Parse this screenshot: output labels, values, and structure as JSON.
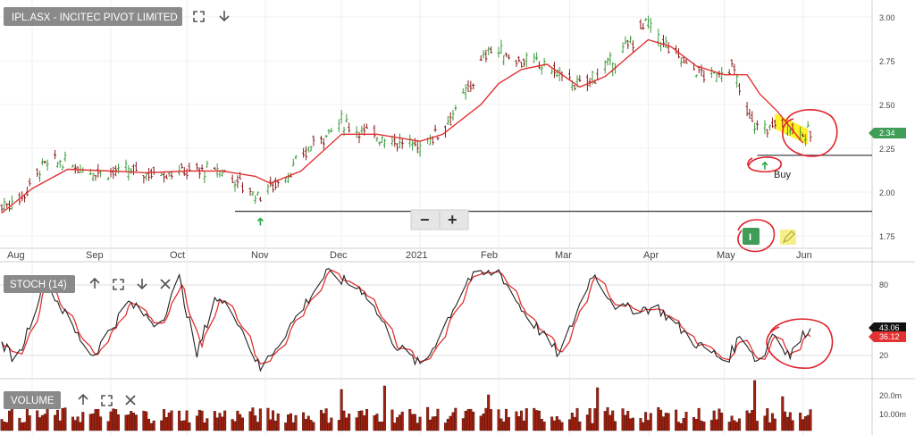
{
  "colors": {
    "up": "#3a9b3a",
    "down": "#8b1a1a",
    "ma": "#e23232",
    "stoch_k": "#222222",
    "stoch_d": "#e23232",
    "volume": "#a3210f",
    "annotation": "#e0202a",
    "highlight": "#ffee00",
    "label_bg": "#8a8a8a",
    "buy_arrow": "#2aa84a"
  },
  "icons": {
    "maximize": "maximize-icon",
    "down": "arrow-down-icon",
    "up": "arrow-up-icon",
    "close": "close-icon",
    "indicator": "indicator-i-icon",
    "pencil": "pencil-icon"
  },
  "price_panel": {
    "label": "IPL.ASX - INCITEC PIVOT LIMITED",
    "buy_text": "Buy",
    "zoom_out": "−",
    "zoom_in": "+",
    "indicator_button": "I",
    "last_price_tag": "2.34",
    "y_ticks": [
      "3.00",
      "2.75",
      "2.50",
      "2.25",
      "2.00",
      "1.75"
    ]
  },
  "x_axis": {
    "labels": [
      "Aug",
      "Sep",
      "Oct",
      "Nov",
      "Dec",
      "2021",
      "Feb",
      "Mar",
      "Apr",
      "May",
      "Jun"
    ]
  },
  "stoch_panel": {
    "label": "STOCH (14)",
    "y_ticks": [
      "80",
      "20"
    ],
    "k_tag": "43.06",
    "d_tag": "36.12"
  },
  "volume_panel": {
    "label": "VOLUME",
    "y_ticks": [
      "20.0m",
      "10.00m"
    ]
  },
  "chart_data": {
    "type": "line",
    "title": "IPL.ASX - INCITEC PIVOT LIMITED",
    "x_range": [
      "2020-07-20",
      "2021-06-04"
    ],
    "price_range": [
      1.7,
      3.07
    ],
    "moving_average": [
      [
        "2020-07-20",
        1.88
      ],
      [
        "2020-08-01",
        2.02
      ],
      [
        "2020-08-15",
        2.13
      ],
      [
        "2020-09-01",
        2.12
      ],
      [
        "2020-09-15",
        2.11
      ],
      [
        "2020-10-01",
        2.12
      ],
      [
        "2020-10-15",
        2.12
      ],
      [
        "2020-10-28",
        2.09
      ],
      [
        "2020-11-03",
        2.05
      ],
      [
        "2020-11-15",
        2.12
      ],
      [
        "2020-12-01",
        2.33
      ],
      [
        "2020-12-15",
        2.33
      ],
      [
        "2021-01-01",
        2.29
      ],
      [
        "2021-01-10",
        2.33
      ],
      [
        "2021-01-25",
        2.5
      ],
      [
        "2021-02-01",
        2.62
      ],
      [
        "2021-02-10",
        2.7
      ],
      [
        "2021-02-20",
        2.73
      ],
      [
        "2021-03-05",
        2.6
      ],
      [
        "2021-03-15",
        2.66
      ],
      [
        "2021-04-01",
        2.87
      ],
      [
        "2021-04-10",
        2.83
      ],
      [
        "2021-04-20",
        2.72
      ],
      [
        "2021-05-01",
        2.67
      ],
      [
        "2021-05-10",
        2.67
      ],
      [
        "2021-05-15",
        2.56
      ],
      [
        "2021-05-22",
        2.46
      ],
      [
        "2021-06-01",
        2.28
      ]
    ],
    "price_anchors": [
      [
        "2020-07-20",
        1.92
      ],
      [
        "2020-07-28",
        1.97
      ],
      [
        "2020-08-05",
        2.15
      ],
      [
        "2020-08-12",
        2.17
      ],
      [
        "2020-08-25",
        2.12
      ],
      [
        "2020-09-15",
        2.11
      ],
      [
        "2020-10-01",
        2.12
      ],
      [
        "2020-10-15",
        2.12
      ],
      [
        "2020-10-29",
        1.98
      ],
      [
        "2020-11-10",
        2.1
      ],
      [
        "2020-11-20",
        2.28
      ],
      [
        "2020-12-01",
        2.4
      ],
      [
        "2020-12-10",
        2.34
      ],
      [
        "2020-12-31",
        2.26
      ],
      [
        "2021-01-10",
        2.36
      ],
      [
        "2021-01-20",
        2.58
      ],
      [
        "2021-01-28",
        2.82
      ],
      [
        "2021-02-10",
        2.75
      ],
      [
        "2021-02-20",
        2.72
      ],
      [
        "2021-03-05",
        2.6
      ],
      [
        "2021-03-20",
        2.76
      ],
      [
        "2021-03-31",
        2.97
      ],
      [
        "2021-04-10",
        2.8
      ],
      [
        "2021-04-25",
        2.65
      ],
      [
        "2021-05-04",
        2.72
      ],
      [
        "2021-05-10",
        2.45
      ],
      [
        "2021-05-15",
        2.35
      ],
      [
        "2021-05-24",
        2.4
      ],
      [
        "2021-06-02",
        2.33
      ]
    ],
    "horizontal_lines": [
      {
        "value": 1.89,
        "from": "2020-10-20",
        "to": "2021-06-30"
      },
      {
        "value": 2.21,
        "from": "2021-05-14",
        "to": "2021-06-30"
      }
    ],
    "buy_signals": [
      {
        "date": "2020-10-30",
        "price": 1.89
      },
      {
        "date": "2021-05-17",
        "price": 2.21
      }
    ],
    "stochastic": {
      "ylim": [
        0,
        100
      ],
      "k_anchors": [
        [
          "2020-07-20",
          30
        ],
        [
          "2020-07-26",
          15
        ],
        [
          "2020-08-06",
          85
        ],
        [
          "2020-08-18",
          40
        ],
        [
          "2020-08-25",
          20
        ],
        [
          "2020-09-08",
          65
        ],
        [
          "2020-09-20",
          45
        ],
        [
          "2020-09-28",
          85
        ],
        [
          "2020-10-05",
          20
        ],
        [
          "2020-10-12",
          70
        ],
        [
          "2020-10-20",
          55
        ],
        [
          "2020-10-30",
          8
        ],
        [
          "2020-11-25",
          90
        ],
        [
          "2020-12-10",
          75
        ],
        [
          "2020-12-22",
          30
        ],
        [
          "2021-01-02",
          10
        ],
        [
          "2021-01-20",
          85
        ],
        [
          "2021-02-01",
          92
        ],
        [
          "2021-02-10",
          60
        ],
        [
          "2021-02-25",
          20
        ],
        [
          "2021-03-10",
          90
        ],
        [
          "2021-03-20",
          60
        ],
        [
          "2021-04-05",
          60
        ],
        [
          "2021-04-20",
          30
        ],
        [
          "2021-05-02",
          15
        ],
        [
          "2021-05-08",
          40
        ],
        [
          "2021-05-15",
          10
        ],
        [
          "2021-05-20",
          40
        ],
        [
          "2021-05-27",
          20
        ],
        [
          "2021-06-03",
          43.06
        ]
      ],
      "d_final": 36.12
    },
    "volume": {
      "unit": "m",
      "ylim": [
        0,
        27
      ],
      "spikes": [
        [
          "2020-12-01",
          23
        ],
        [
          "2020-12-18",
          25
        ],
        [
          "2021-01-28",
          20
        ],
        [
          "2021-03-12",
          24
        ],
        [
          "2021-05-13",
          28
        ],
        [
          "2021-05-24",
          19
        ]
      ]
    }
  }
}
